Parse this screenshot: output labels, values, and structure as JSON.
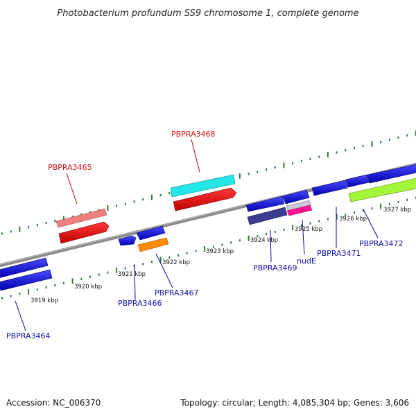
{
  "title": "Photobacterium profundum SS9 chromosome 1, complete genome",
  "footer": {
    "accession": "Accession: NC_006370",
    "summary": "Topology: circular; Length: 4,085,304 bp; Genes: 3,606"
  },
  "colors": {
    "backbone": "#888888",
    "tick": "#2e7d32",
    "label_forward": "#dd1111",
    "label_reverse": "#1111aa",
    "label_scale": "#111111"
  },
  "scale_labels": [
    "3919 kbp",
    "3920 kbp",
    "3921 kbp",
    "3922 kbp",
    "3923 kbp",
    "3924 kbp",
    "3925 kbp",
    "3926 kbp",
    "3927 kbp"
  ],
  "gene_labels": {
    "PBPRA3465": "PBPRA3465",
    "PBPRA3468": "PBPRA3468",
    "PBPRA3464": "PBPRA3464",
    "PBPRA3466": "PBPRA3466",
    "PBPRA3467": "PBPRA3467",
    "PBPRA3469": "PBPRA3469",
    "nudE": "nudE",
    "PBPRA3471": "PBPRA3471",
    "PBPRA3472": "PBPRA3472"
  }
}
